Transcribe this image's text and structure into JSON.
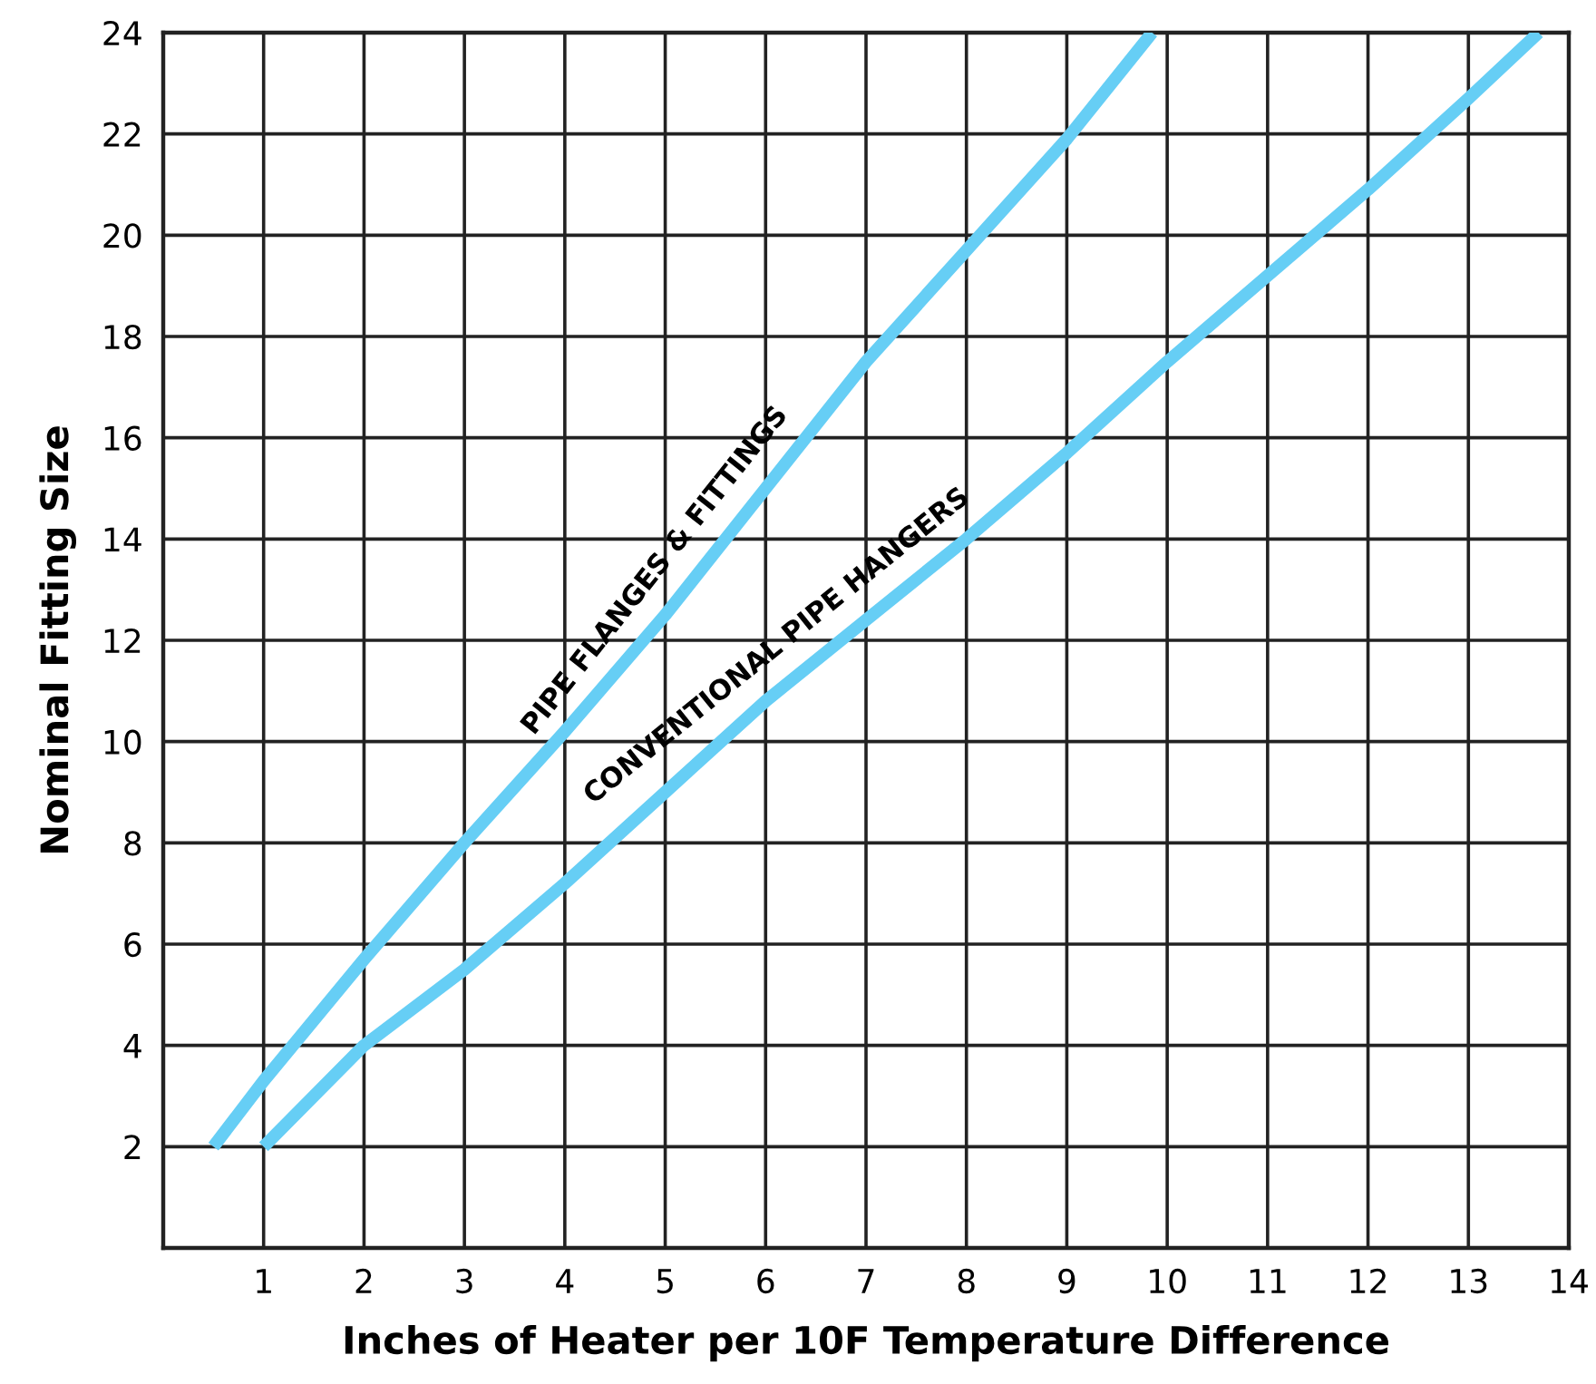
{
  "chart_data": {
    "type": "line",
    "xlabel": "Inches of Heater per 10F Temperature Difference",
    "ylabel": "Nominal Fitting Size",
    "xlim": [
      0,
      14
    ],
    "ylim": [
      0,
      24
    ],
    "xticks": [
      1,
      2,
      3,
      4,
      5,
      6,
      7,
      8,
      9,
      10,
      11,
      12,
      13,
      14
    ],
    "yticks": [
      2,
      4,
      6,
      8,
      10,
      12,
      14,
      16,
      18,
      20,
      22,
      24
    ],
    "grid": true,
    "marker": "none",
    "line_style": "solid",
    "series": [
      {
        "name": "PIPE FLANGES & FITTINGS",
        "color": "#66cef5",
        "x": [
          0.5,
          1,
          2,
          3,
          4,
          5,
          6,
          7,
          8,
          9,
          9.85
        ],
        "values": [
          2,
          3.3,
          5.7,
          8,
          10.2,
          12.5,
          15,
          17.5,
          19.7,
          21.9,
          24
        ]
      },
      {
        "name": "CONVENTIONAL PIPE HANGERS",
        "color": "#66cef5",
        "x": [
          1,
          2,
          3,
          4,
          5,
          6,
          7,
          8,
          9,
          10,
          11,
          12,
          13,
          13.7
        ],
        "values": [
          2,
          4,
          5.5,
          7.2,
          9,
          10.8,
          12.4,
          14,
          15.7,
          17.5,
          19.2,
          20.9,
          22.7,
          24
        ]
      }
    ]
  }
}
